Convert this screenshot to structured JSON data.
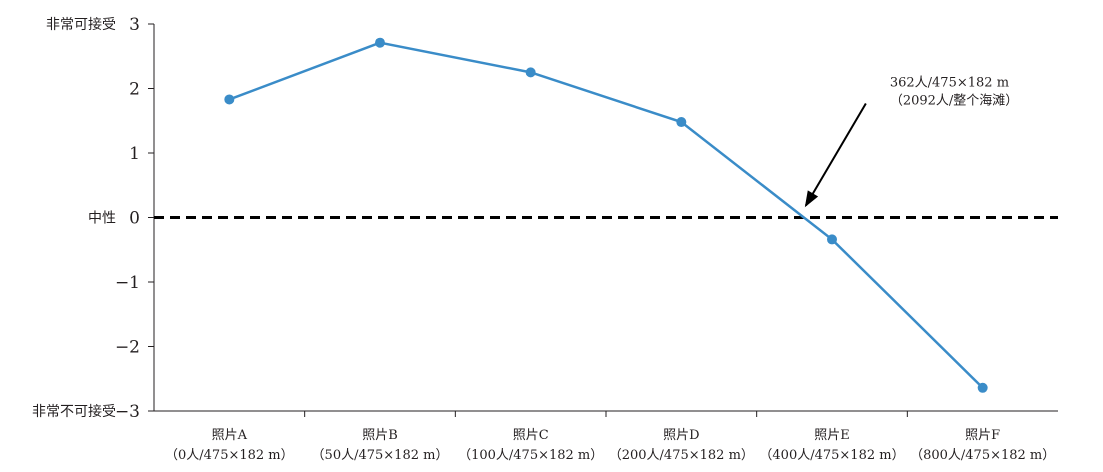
{
  "chart_data": {
    "type": "line",
    "categories": [
      [
        "照片A",
        "（0人/475×182 m）"
      ],
      [
        "照片B",
        "（50人/475×182 m）"
      ],
      [
        "照片C",
        "（100人/475×182 m）"
      ],
      [
        "照片D",
        "（200人/475×182 m）"
      ],
      [
        "照片E",
        "（400人/475×182 m）"
      ],
      [
        "照片F",
        "（800人/475×182 m）"
      ]
    ],
    "series": [
      {
        "values": [
          1.83,
          2.71,
          2.25,
          1.48,
          -0.34,
          -2.64
        ]
      }
    ],
    "ylim": [
      -3,
      3
    ],
    "yticks": [
      "3",
      "2",
      "1",
      "0",
      "−1",
      "−2",
      "−3"
    ],
    "y_side_labels": {
      "top": "非常可接受",
      "middle": "中性",
      "bottom": "非常不可接受"
    },
    "reference_line": {
      "y": 0,
      "style": "dashed"
    },
    "annotation": {
      "line1": "362人/475×182 m",
      "line2": "（2092人/整个海滩）",
      "points_to_y": 0
    },
    "grid": false,
    "legend": "none",
    "colors": {
      "series": "#3a8cc8",
      "axis": "#231f20",
      "text": "#231f20",
      "reference": "#000000"
    }
  }
}
